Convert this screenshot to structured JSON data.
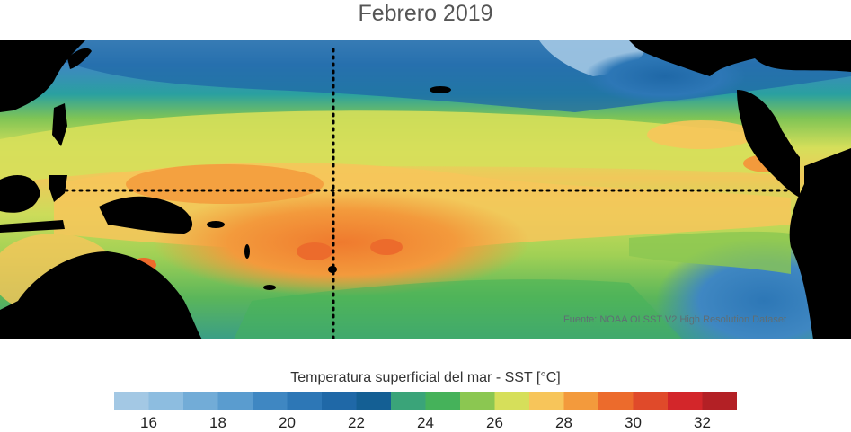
{
  "title": "Febrero 2019",
  "credit": "Fuente: NOAA OI SST V2 High Resolution Dataset",
  "colorbar": {
    "title": "Temperatura superficial del mar - SST  [°C]",
    "min": 15,
    "max": 33,
    "step": 1,
    "tick_labels": [
      "16",
      "18",
      "20",
      "22",
      "24",
      "26",
      "28",
      "30",
      "32"
    ],
    "colors": [
      "#a3c8e4",
      "#8dbde0",
      "#72acd7",
      "#5a9ccf",
      "#3f87c2",
      "#2d77b6",
      "#1f68a7",
      "#145f94",
      "#3aa479",
      "#45b25a",
      "#8bc751",
      "#d6df5a",
      "#f7c55a",
      "#f39a3c",
      "#ec6b2c",
      "#e04a2a",
      "#d3262a",
      "#b32025"
    ]
  },
  "map": {
    "colors": {
      "land": "#000000",
      "cool": "#2f7ec0",
      "mid": "#45b25a",
      "warm": "#d6df5a",
      "warmer": "#f7c55a",
      "hot": "#f28d3c",
      "hottest": "#ec6b2c",
      "cold_east": "#3f87c2"
    },
    "reference_lines": {
      "equator": "0°",
      "meridian": "180°"
    }
  }
}
